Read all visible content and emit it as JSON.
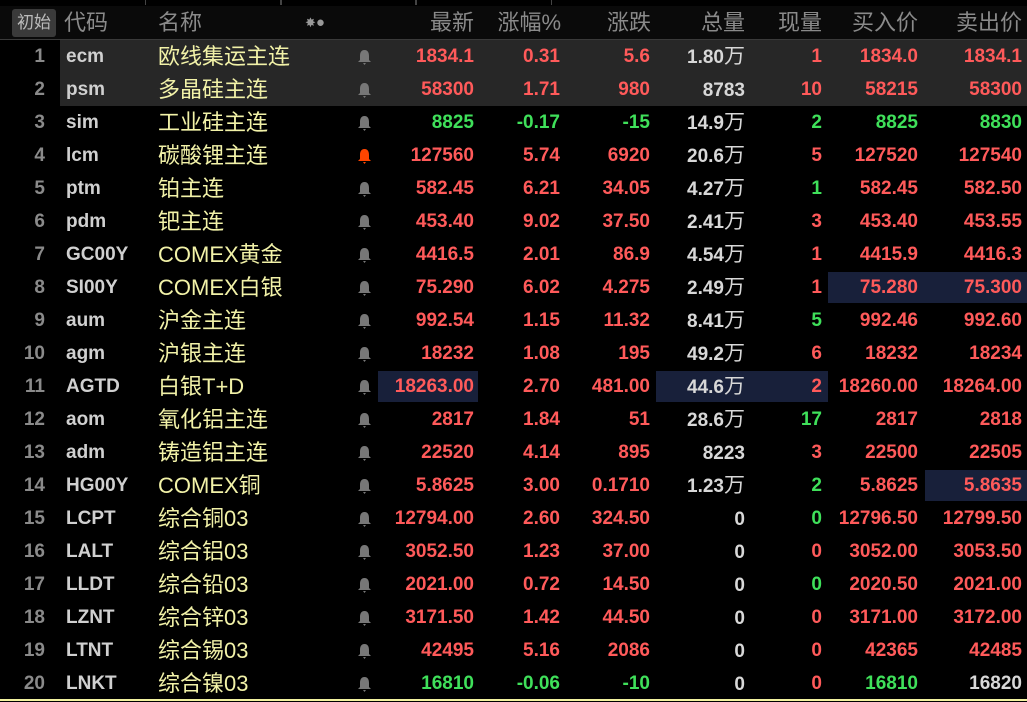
{
  "header": {
    "init_button": "初始",
    "columns": {
      "code": "代码",
      "name": "名称",
      "latest": "最新",
      "pct": "涨幅%",
      "change": "涨跌",
      "volume": "总量",
      "current": "现量",
      "bid": "买入价",
      "ask": "卖出价"
    },
    "icons": [
      "sun-icon",
      "dot-icon"
    ]
  },
  "colors": {
    "up": "#ff5a5a",
    "down": "#3fe05a",
    "neutral": "#d8d8d8",
    "name": "#f2f2a8",
    "alert_active": "#ff4500",
    "alert_inactive": "#777777"
  },
  "rows": [
    {
      "num": "1",
      "code": "ecm",
      "name": "欧线集运主连",
      "alert": false,
      "latest": "1834.1",
      "pct": "0.31",
      "change": "5.6",
      "volume": "1.80",
      "unit": "万",
      "current": "1",
      "bid": "1834.0",
      "ask": "1834.1",
      "color": "r",
      "cur_color": "r",
      "ask_color": "r",
      "selected": true
    },
    {
      "num": "2",
      "code": "psm",
      "name": "多晶硅主连",
      "alert": false,
      "latest": "58300",
      "pct": "1.71",
      "change": "980",
      "volume": "8783",
      "unit": "",
      "current": "10",
      "bid": "58215",
      "ask": "58300",
      "color": "r",
      "cur_color": "r",
      "ask_color": "r",
      "selected": true
    },
    {
      "num": "3",
      "code": "sim",
      "name": "工业硅主连",
      "alert": false,
      "latest": "8825",
      "pct": "-0.17",
      "change": "-15",
      "volume": "14.9",
      "unit": "万",
      "current": "2",
      "bid": "8825",
      "ask": "8830",
      "color": "g",
      "cur_color": "g",
      "ask_color": "g"
    },
    {
      "num": "4",
      "code": "lcm",
      "name": "碳酸锂主连",
      "alert": true,
      "latest": "127560",
      "pct": "5.74",
      "change": "6920",
      "volume": "20.6",
      "unit": "万",
      "current": "5",
      "bid": "127520",
      "ask": "127540",
      "color": "r",
      "cur_color": "r",
      "ask_color": "r"
    },
    {
      "num": "5",
      "code": "ptm",
      "name": "铂主连",
      "alert": false,
      "latest": "582.45",
      "pct": "6.21",
      "change": "34.05",
      "volume": "4.27",
      "unit": "万",
      "current": "1",
      "bid": "582.45",
      "ask": "582.50",
      "color": "r",
      "cur_color": "g",
      "ask_color": "r"
    },
    {
      "num": "6",
      "code": "pdm",
      "name": "钯主连",
      "alert": false,
      "latest": "453.40",
      "pct": "9.02",
      "change": "37.50",
      "volume": "2.41",
      "unit": "万",
      "current": "3",
      "bid": "453.40",
      "ask": "453.55",
      "color": "r",
      "cur_color": "r",
      "ask_color": "r"
    },
    {
      "num": "7",
      "code": "GC00Y",
      "name": "COMEX黄金",
      "alert": false,
      "latest": "4416.5",
      "pct": "2.01",
      "change": "86.9",
      "volume": "4.54",
      "unit": "万",
      "current": "1",
      "bid": "4415.9",
      "ask": "4416.3",
      "color": "r",
      "cur_color": "r",
      "ask_color": "r"
    },
    {
      "num": "8",
      "code": "SI00Y",
      "name": "COMEX白银",
      "alert": false,
      "latest": "75.290",
      "pct": "6.02",
      "change": "4.275",
      "volume": "2.49",
      "unit": "万",
      "current": "1",
      "bid": "75.280",
      "ask": "75.300",
      "color": "r",
      "cur_color": "r",
      "ask_color": "r",
      "hl": [
        "bidask"
      ]
    },
    {
      "num": "9",
      "code": "aum",
      "name": "沪金主连",
      "alert": false,
      "latest": "992.54",
      "pct": "1.15",
      "change": "11.32",
      "volume": "8.41",
      "unit": "万",
      "current": "5",
      "bid": "992.46",
      "ask": "992.60",
      "color": "r",
      "cur_color": "g",
      "ask_color": "r"
    },
    {
      "num": "10",
      "code": "agm",
      "name": "沪银主连",
      "alert": false,
      "latest": "18232",
      "pct": "1.08",
      "change": "195",
      "volume": "49.2",
      "unit": "万",
      "current": "6",
      "bid": "18232",
      "ask": "18234",
      "color": "r",
      "cur_color": "r",
      "ask_color": "r"
    },
    {
      "num": "11",
      "code": "AGTD",
      "name": "白银T+D",
      "alert": false,
      "latest": "18263.00",
      "pct": "2.70",
      "change": "481.00",
      "volume": "44.6",
      "unit": "万",
      "current": "2",
      "bid": "18260.00",
      "ask": "18264.00",
      "color": "r",
      "cur_color": "r",
      "ask_color": "r",
      "hl": [
        "latest",
        "volcur"
      ]
    },
    {
      "num": "12",
      "code": "aom",
      "name": "氧化铝主连",
      "alert": false,
      "latest": "2817",
      "pct": "1.84",
      "change": "51",
      "volume": "28.6",
      "unit": "万",
      "current": "17",
      "bid": "2817",
      "ask": "2818",
      "color": "r",
      "cur_color": "g",
      "ask_color": "r"
    },
    {
      "num": "13",
      "code": "adm",
      "name": "铸造铝主连",
      "alert": false,
      "latest": "22520",
      "pct": "4.14",
      "change": "895",
      "volume": "8223",
      "unit": "",
      "current": "3",
      "bid": "22500",
      "ask": "22505",
      "color": "r",
      "cur_color": "r",
      "ask_color": "r"
    },
    {
      "num": "14",
      "code": "HG00Y",
      "name": "COMEX铜",
      "alert": false,
      "latest": "5.8625",
      "pct": "3.00",
      "change": "0.1710",
      "volume": "1.23",
      "unit": "万",
      "current": "2",
      "bid": "5.8625",
      "ask": "5.8635",
      "color": "r",
      "cur_color": "g",
      "ask_color": "r",
      "hl": [
        "ask"
      ]
    },
    {
      "num": "15",
      "code": "LCPT",
      "name": "综合铜03",
      "alert": false,
      "latest": "12794.00",
      "pct": "2.60",
      "change": "324.50",
      "volume": "0",
      "unit": "",
      "current": "0",
      "bid": "12796.50",
      "ask": "12799.50",
      "color": "r",
      "cur_color": "g",
      "ask_color": "r"
    },
    {
      "num": "16",
      "code": "LALT",
      "name": "综合铝03",
      "alert": false,
      "latest": "3052.50",
      "pct": "1.23",
      "change": "37.00",
      "volume": "0",
      "unit": "",
      "current": "0",
      "bid": "3052.00",
      "ask": "3053.50",
      "color": "r",
      "cur_color": "r",
      "ask_color": "r"
    },
    {
      "num": "17",
      "code": "LLDT",
      "name": "综合铅03",
      "alert": false,
      "latest": "2021.00",
      "pct": "0.72",
      "change": "14.50",
      "volume": "0",
      "unit": "",
      "current": "0",
      "bid": "2020.50",
      "ask": "2021.00",
      "color": "r",
      "cur_color": "g",
      "ask_color": "r"
    },
    {
      "num": "18",
      "code": "LZNT",
      "name": "综合锌03",
      "alert": false,
      "latest": "3171.50",
      "pct": "1.42",
      "change": "44.50",
      "volume": "0",
      "unit": "",
      "current": "0",
      "bid": "3171.00",
      "ask": "3172.00",
      "color": "r",
      "cur_color": "r",
      "ask_color": "r"
    },
    {
      "num": "19",
      "code": "LTNT",
      "name": "综合锡03",
      "alert": false,
      "latest": "42495",
      "pct": "5.16",
      "change": "2086",
      "volume": "0",
      "unit": "",
      "current": "0",
      "bid": "42365",
      "ask": "42485",
      "color": "r",
      "cur_color": "r",
      "ask_color": "r"
    },
    {
      "num": "20",
      "code": "LNKT",
      "name": "综合镍03",
      "alert": false,
      "latest": "16810",
      "pct": "-0.06",
      "change": "-10",
      "volume": "0",
      "unit": "",
      "current": "0",
      "bid": "16810",
      "ask": "16820",
      "color": "g",
      "cur_color": "r",
      "ask_color": "w"
    }
  ]
}
